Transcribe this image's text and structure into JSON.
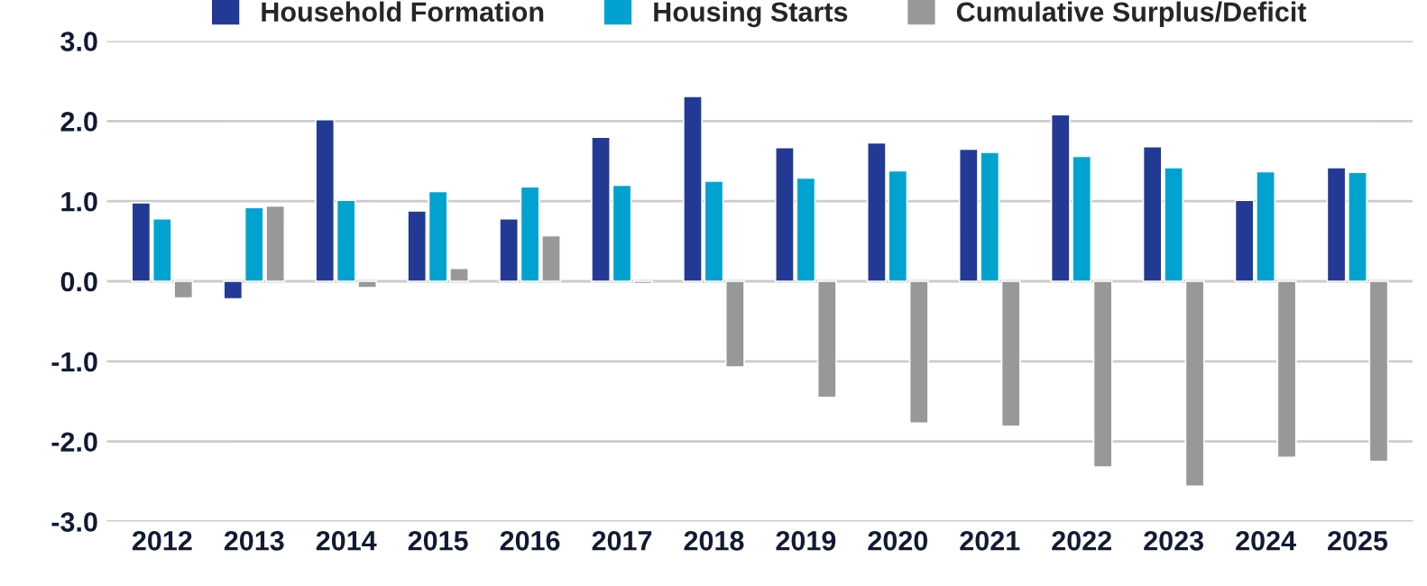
{
  "chart_data": {
    "type": "bar",
    "categories": [
      "2012",
      "2013",
      "2014",
      "2015",
      "2016",
      "2017",
      "2018",
      "2019",
      "2020",
      "2021",
      "2022",
      "2023",
      "2024",
      "2025"
    ],
    "series": [
      {
        "name": "Household Formation",
        "color": "#233a95",
        "values": [
          0.98,
          -0.22,
          2.02,
          0.88,
          0.78,
          1.8,
          2.31,
          1.67,
          1.73,
          1.65,
          2.08,
          1.68,
          1.01,
          1.42
        ]
      },
      {
        "name": "Housing Starts",
        "color": "#00a3d0",
        "values": [
          0.78,
          0.92,
          1.01,
          1.12,
          1.18,
          1.2,
          1.25,
          1.29,
          1.38,
          1.61,
          1.56,
          1.42,
          1.37,
          1.36
        ]
      },
      {
        "name": "Cumulative Surplus/Deficit",
        "color": "#989898",
        "values": [
          -0.21,
          0.94,
          -0.08,
          0.16,
          0.57,
          -0.03,
          -1.07,
          -1.45,
          -1.77,
          -1.81,
          -2.32,
          -2.56,
          -2.2,
          -2.25
        ]
      }
    ],
    "ylim": [
      -3,
      3
    ],
    "yticks": [
      {
        "value": -3,
        "label": "-3.0"
      },
      {
        "value": -2,
        "label": "-2.0"
      },
      {
        "value": -1,
        "label": "-1.0"
      },
      {
        "value": 0,
        "label": "0.0"
      },
      {
        "value": 1,
        "label": "1.0"
      },
      {
        "value": 2,
        "label": "2.0"
      },
      {
        "value": 3,
        "label": "3.0"
      }
    ],
    "grid": "y",
    "legend": "top"
  }
}
